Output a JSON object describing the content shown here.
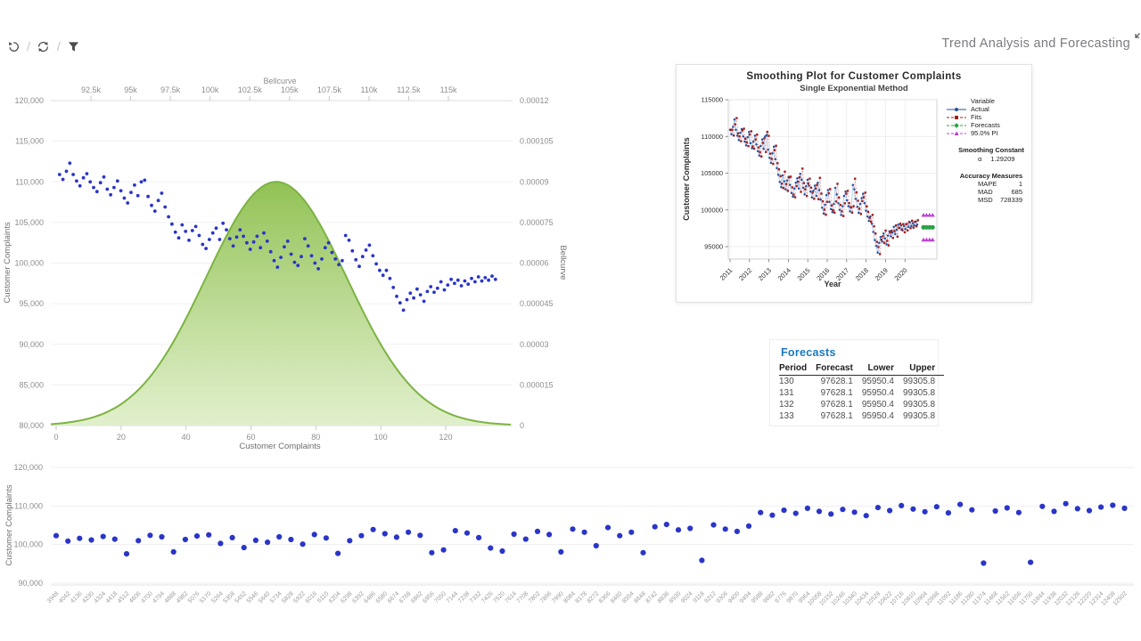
{
  "page": {
    "title": "Trend Analysis and Forecasting"
  },
  "toolbar": {
    "icons": [
      {
        "name": "undo"
      },
      {
        "name": "refresh"
      },
      {
        "name": "filter"
      }
    ],
    "corner_icon": "expand"
  },
  "colors": {
    "dot_blue": "#2A35C8",
    "bell_stroke": "#7CB342",
    "bell_fill_top": "#8CBF4C",
    "bell_fill_bottom": "#DCEDC3",
    "accent_blue": "#1B78BE",
    "actual_blue": "#26519C",
    "actual_line": "#A3C2E8",
    "fits_red": "#A01D20",
    "forecast_green": "#2AA346",
    "pi_magenta": "#BB3FD4"
  },
  "forecasts": {
    "title": "Forecasts",
    "columns": [
      "Period",
      "Forecast",
      "Lower",
      "Upper"
    ],
    "rows": [
      [
        "130",
        "97628.1",
        "95950.4",
        "99305.8"
      ],
      [
        "131",
        "97628.1",
        "95950.4",
        "99305.8"
      ],
      [
        "132",
        "97628.1",
        "95950.4",
        "99305.8"
      ],
      [
        "133",
        "97628.1",
        "95950.4",
        "99305.8"
      ]
    ]
  },
  "chart_data": [
    {
      "type": "scatter",
      "top_axis": {
        "label": "Bellcurve",
        "ticks": [
          "92.5k",
          "95k",
          "97.5k",
          "100k",
          "102.5k",
          "105k",
          "107.5k",
          "110k",
          "112.5k",
          "115k"
        ]
      },
      "bottom_axis": {
        "label": "Customer Complaints",
        "ticks": [
          "0",
          "20",
          "40",
          "60",
          "80",
          "100",
          "120"
        ]
      },
      "left_axis": {
        "label": "Customer Complaints",
        "max": 120000,
        "min": 80000,
        "ticks": [
          "120,000",
          "115,000",
          "110,000",
          "105,000",
          "100,000",
          "95,000",
          "90,000",
          "85,000",
          "80,000"
        ],
        "tick_values": [
          120000,
          115000,
          110000,
          105000,
          100000,
          95000,
          90000,
          85000,
          80000
        ]
      },
      "right_axis": {
        "label": "Bellcurve",
        "max": 0.00012,
        "min": 0,
        "ticks": [
          "0.00012",
          "0.000105",
          "0.00009",
          "0.000075",
          "0.00006",
          "0.000045",
          "0.00003",
          "0.000015",
          "0"
        ]
      },
      "bellcurve": {
        "mean": 103500,
        "sd": 4430,
        "peak": 9e-05
      },
      "scatter_values": [
        110900,
        110300,
        111300,
        112300,
        110900,
        110100,
        109500,
        110500,
        111000,
        110000,
        109300,
        108800,
        109900,
        110600,
        109100,
        108400,
        109300,
        110100,
        108900,
        108000,
        107400,
        108700,
        109600,
        108300,
        110000,
        110200,
        108200,
        107100,
        106400,
        107700,
        108600,
        106900,
        105700,
        104800,
        103800,
        103100,
        104700,
        103900,
        102800,
        104000,
        104500,
        103400,
        102300,
        101800,
        102900,
        103700,
        104300,
        102900,
        104900,
        104100,
        103000,
        102100,
        103200,
        104100,
        103300,
        102500,
        101700,
        102600,
        103300,
        101900,
        103700,
        102700,
        101400,
        100300,
        99500,
        100700,
        102000,
        102700,
        101100,
        100100,
        99700,
        100800,
        103000,
        102100,
        100900,
        100000,
        99300,
        100500,
        101900,
        102500,
        101300,
        100500,
        99800,
        100300,
        103400,
        102800,
        101500,
        100400,
        99600,
        100800,
        101600,
        102200,
        100900,
        99900,
        99100,
        98500,
        99100,
        98100,
        97000,
        95900,
        95100,
        94200,
        95500,
        96300,
        95700,
        96800,
        96100,
        95300,
        96500,
        97100,
        96400,
        96900,
        97700,
        96700,
        97300,
        98000,
        97500,
        97900,
        97200,
        97800,
        97400,
        98100,
        97700,
        98300,
        97800,
        98200,
        97900,
        98400,
        98000
      ]
    },
    {
      "type": "line",
      "title": "Smoothing Plot for Customer Complaints",
      "subtitle": "Single Exponential Method",
      "xlabel": "Year",
      "ylabel": "Customer Complaints",
      "x_ticks": [
        "2011",
        "2012",
        "2013",
        "2014",
        "2015",
        "2016",
        "2017",
        "2018",
        "2019",
        "2020"
      ],
      "y_ticks": [
        115000,
        110000,
        105000,
        100000,
        95000
      ],
      "legend": {
        "header": "Variable",
        "items": [
          {
            "label": "Actual",
            "color": "#26519C",
            "marker": "circle",
            "dash": false
          },
          {
            "label": "Fits",
            "color": "#A01D20",
            "marker": "square",
            "dash": true
          },
          {
            "label": "Forecasts",
            "color": "#2AA346",
            "marker": "diamond",
            "dash": true
          },
          {
            "label": "95.0% PI",
            "color": "#BB3FD4",
            "marker": "triangle",
            "dash": true
          }
        ]
      },
      "smoothing_constant": {
        "label": "Smoothing Constant",
        "alpha_symbol": "α",
        "alpha_value": "1.29209"
      },
      "accuracy": {
        "label": "Accuracy Measures",
        "rows": [
          [
            "MAPE",
            "1"
          ],
          [
            "MAD",
            "685"
          ],
          [
            "MSD",
            "728339"
          ]
        ]
      },
      "smoothing_alpha": 1.29209,
      "forecast_value": 97628.1,
      "pi_upper": 99305.8,
      "pi_lower": 95950.4
    },
    {
      "type": "scatter",
      "ylabel": "Customer Complaints",
      "y_ticks": [
        "120,000",
        "110,000",
        "100,000",
        "90,000"
      ],
      "y_tick_values": [
        120000,
        110000,
        100000,
        90000
      ],
      "x_labels": [
        "3948",
        "4042",
        "4136",
        "4230",
        "4324",
        "4418",
        "4512",
        "4606",
        "4700",
        "4794",
        "4888",
        "4982",
        "5076",
        "5170",
        "5264",
        "5358",
        "5452",
        "5546",
        "5640",
        "5734",
        "5828",
        "5922",
        "6016",
        "6110",
        "6204",
        "6298",
        "6392",
        "6486",
        "6580",
        "6674",
        "6768",
        "6862",
        "6956",
        "7050",
        "7144",
        "7238",
        "7332",
        "7426",
        "7520",
        "7614",
        "7708",
        "7802",
        "7896",
        "7990",
        "8084",
        "8178",
        "8272",
        "8366",
        "8460",
        "8554",
        "8648",
        "8742",
        "8836",
        "8930",
        "9024",
        "9118",
        "9212",
        "9306",
        "9400",
        "9494",
        "9588",
        "9682",
        "9776",
        "9870",
        "9964",
        "10058",
        "10152",
        "10246",
        "10340",
        "10434",
        "10528",
        "10622",
        "10716",
        "10810",
        "10904",
        "10998",
        "11092",
        "11186",
        "11280",
        "11374",
        "11468",
        "11562",
        "11656",
        "11750",
        "11844",
        "11938",
        "12032",
        "12126",
        "12220",
        "12314",
        "12408",
        "12502"
      ],
      "values": [
        102300,
        100900,
        101600,
        101200,
        102100,
        101400,
        97600,
        101000,
        102400,
        102000,
        98100,
        101300,
        102200,
        102500,
        100300,
        101800,
        99200,
        101100,
        100600,
        102000,
        101300,
        100100,
        102600,
        101700,
        97700,
        101000,
        102300,
        103900,
        102800,
        101900,
        103200,
        102400,
        97900,
        98600,
        103600,
        103000,
        101800,
        99100,
        98300,
        102700,
        101400,
        103400,
        102600,
        98100,
        104000,
        103200,
        99700,
        104400,
        102300,
        103200,
        97900,
        104600,
        105200,
        103800,
        104200,
        95900,
        105100,
        104000,
        103400,
        104800,
        108300,
        107600,
        108900,
        108100,
        109400,
        108600,
        107900,
        109100,
        108400,
        107500,
        109600,
        108800,
        110100,
        109200,
        108500,
        109800,
        108200,
        110400,
        109000,
        95200,
        108700,
        109500,
        108300,
        95400,
        109900,
        108600,
        110600,
        109300,
        108800,
        109700,
        110200,
        109400
      ]
    }
  ]
}
